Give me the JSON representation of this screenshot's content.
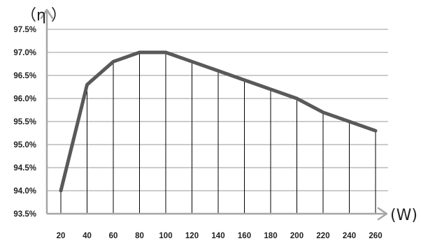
{
  "chart_data": {
    "type": "line",
    "x": [
      20,
      40,
      60,
      80,
      100,
      120,
      140,
      160,
      180,
      200,
      220,
      240,
      260
    ],
    "series": [
      {
        "values": [
          94.0,
          96.3,
          96.8,
          97.0,
          97.0,
          96.8,
          96.6,
          96.4,
          96.2,
          96.0,
          95.7,
          95.5,
          95.3
        ]
      }
    ],
    "xlabel": "(W)",
    "ylabel": "（η ）",
    "ylim": [
      93.5,
      97.5
    ],
    "yticks": [
      "93.5%",
      "94.0%",
      "94.5%",
      "95.0%",
      "95.5%",
      "96.0%",
      "96.5%",
      "97.0%",
      "97.5%"
    ],
    "xticks": [
      "20",
      "40",
      "60",
      "80",
      "100",
      "120",
      "140",
      "160",
      "180",
      "200",
      "220",
      "240",
      "260"
    ],
    "grid": true,
    "legend": "none",
    "colors": {
      "series": "#595959",
      "axis": "#a6a6a6",
      "grid": "#9a9a9a"
    }
  }
}
